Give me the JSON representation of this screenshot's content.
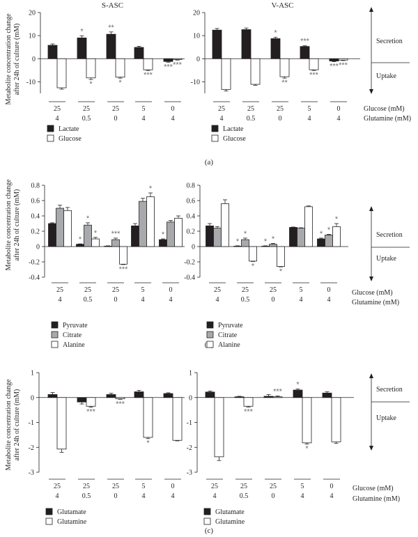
{
  "figure": {
    "y_label": "Metabolite concentration change after 24h of culture (mM)",
    "secretion": "Secretion",
    "uptake": "Uptake",
    "glucose_row": "Glucose (mM)",
    "glutamine_row": "Glutamine (mM)",
    "panel_a": "(a)",
    "panel_b": "(b)",
    "panel_c": "(c)"
  },
  "chart_data": [
    {
      "id": "a-sasc",
      "type": "bar",
      "title": "S-ASC",
      "categories": [
        "25/4",
        "25/0.5",
        "25/0",
        "5/4",
        "0/4"
      ],
      "glucose_levels": [
        "25",
        "25",
        "25",
        "5",
        "0"
      ],
      "glutamine_levels": [
        "4",
        "0.5",
        "0",
        "4",
        "4"
      ],
      "ylim": [
        -15,
        20
      ],
      "yticks": [
        -10,
        0,
        10,
        20
      ],
      "series": [
        {
          "name": "Lactate",
          "color": "#231f20",
          "values": [
            5.8,
            9.0,
            10.6,
            4.9,
            -1.2
          ],
          "errors": [
            0.6,
            0.9,
            1.0,
            0.5,
            0.3
          ],
          "stars": [
            "",
            "*",
            "**",
            "",
            "***"
          ]
        },
        {
          "name": "Glucose",
          "color": "#ffffff",
          "values": [
            -12.6,
            -8.3,
            -8.0,
            -4.8,
            -0.4
          ],
          "errors": [
            0.6,
            0.7,
            0.4,
            0.3,
            0.2
          ],
          "stars": [
            "",
            "*",
            "*",
            "***",
            "***"
          ]
        }
      ]
    },
    {
      "id": "a-vasc",
      "type": "bar",
      "title": "V-ASC",
      "categories": [
        "25/4",
        "25/0.5",
        "25/0",
        "5/4",
        "0/4"
      ],
      "glucose_levels": [
        "25",
        "25",
        "25",
        "5",
        "0"
      ],
      "glutamine_levels": [
        "4",
        "0.5",
        "0",
        "4",
        "4"
      ],
      "ylim": [
        -15,
        20
      ],
      "yticks": [
        -10,
        0,
        10,
        20
      ],
      "series": [
        {
          "name": "Lactate",
          "color": "#231f20",
          "values": [
            12.4,
            12.6,
            8.7,
            5.3,
            -1.0
          ],
          "errors": [
            0.7,
            0.7,
            0.6,
            0.3,
            0.3
          ],
          "stars": [
            "",
            "",
            "*",
            "***",
            "***"
          ]
        },
        {
          "name": "Glucose",
          "color": "#ffffff",
          "values": [
            -13.3,
            -11.1,
            -7.8,
            -4.8,
            -0.6
          ],
          "errors": [
            0.7,
            0.4,
            0.6,
            0.3,
            0.2
          ],
          "stars": [
            "",
            "",
            "**",
            "***",
            "***"
          ]
        }
      ]
    },
    {
      "id": "b-sasc",
      "type": "bar",
      "categories": [
        "25/4",
        "25/0.5",
        "25/0",
        "5/4",
        "0/4"
      ],
      "glucose_levels": [
        "25",
        "25",
        "25",
        "5",
        "0"
      ],
      "glutamine_levels": [
        "4",
        "0.5",
        "0",
        "4",
        "4"
      ],
      "ylim": [
        -0.4,
        0.8
      ],
      "yticks": [
        "-0.4",
        "-0.2",
        "0",
        "0.2",
        "0.4",
        "0.6",
        "0.8"
      ],
      "series": [
        {
          "name": "Pyruvate",
          "color": "#231f20",
          "values": [
            0.3,
            0.03,
            0.005,
            0.27,
            0.09
          ],
          "errors": [
            0.01,
            0.005,
            0.005,
            0.03,
            0.01
          ],
          "stars": [
            "",
            "*",
            "",
            "",
            "*"
          ]
        },
        {
          "name": "Citrate",
          "color": "#a7a9ac",
          "values": [
            0.5,
            0.28,
            0.09,
            0.59,
            0.32
          ],
          "errors": [
            0.04,
            0.03,
            0.02,
            0.04,
            0.02
          ],
          "stars": [
            "",
            "*",
            "***",
            "",
            ""
          ]
        },
        {
          "name": "Alanine",
          "color": "#ffffff",
          "values": [
            0.47,
            0.1,
            -0.23,
            0.65,
            0.37
          ],
          "errors": [
            0.04,
            0.02,
            0.005,
            0.05,
            0.03
          ],
          "stars": [
            "",
            "*",
            "***",
            "*",
            ""
          ]
        }
      ]
    },
    {
      "id": "b-vasc",
      "type": "bar",
      "categories": [
        "25/4",
        "25/0.5",
        "25/0",
        "5/4",
        "0/4"
      ],
      "glucose_levels": [
        "25",
        "25",
        "25",
        "5",
        "0"
      ],
      "glutamine_levels": [
        "4",
        "0.5",
        "0",
        "4",
        "4"
      ],
      "ylim": [
        -0.4,
        0.8
      ],
      "yticks": [
        "-0.4",
        "-0.2",
        "0",
        "0.2",
        "0.4",
        "0.6",
        "0.8"
      ],
      "series": [
        {
          "name": "Pyruvate",
          "color": "#231f20",
          "values": [
            0.27,
            0.005,
            0.005,
            0.25,
            0.1
          ],
          "errors": [
            0.03,
            0.005,
            0.005,
            0.005,
            0.01
          ],
          "stars": [
            "",
            "*",
            "*",
            "",
            "*"
          ]
        },
        {
          "name": "Citrate",
          "color": "#a7a9ac",
          "values": [
            0.24,
            0.09,
            0.03,
            0.24,
            0.15
          ],
          "errors": [
            0.02,
            0.02,
            0.01,
            0.005,
            0.01
          ],
          "stars": [
            "",
            "*",
            "*",
            "",
            "*"
          ]
        },
        {
          "name": "Alanine",
          "color": "#ffffff",
          "values": [
            0.56,
            -0.19,
            -0.26,
            0.52,
            0.26
          ],
          "errors": [
            0.05,
            0.005,
            0.005,
            0.01,
            0.04
          ],
          "stars": [
            "",
            "*",
            "*",
            "",
            "*"
          ]
        }
      ]
    },
    {
      "id": "c-sasc",
      "type": "bar",
      "categories": [
        "25/4",
        "25/0.5",
        "25/0",
        "5/4",
        "0/4"
      ],
      "glucose_levels": [
        "25",
        "25",
        "25",
        "5",
        "0"
      ],
      "glutamine_levels": [
        "4",
        "0.5",
        "0",
        "4",
        "4"
      ],
      "ylim": [
        -3,
        1
      ],
      "yticks": [
        "-3",
        "-2",
        "-1",
        "0",
        "1"
      ],
      "series": [
        {
          "name": "Glutamate",
          "color": "#231f20",
          "values": [
            0.12,
            -0.18,
            0.12,
            0.23,
            0.16
          ],
          "errors": [
            0.08,
            0.08,
            0.05,
            0.06,
            0.03
          ],
          "stars": [
            "",
            "",
            "",
            "",
            ""
          ]
        },
        {
          "name": "Glutamine",
          "color": "#ffffff",
          "values": [
            -2.07,
            -0.35,
            -0.05,
            -1.6,
            -1.72
          ],
          "errors": [
            0.13,
            0.04,
            0.02,
            0.05,
            0.02
          ],
          "stars": [
            "",
            "***",
            "***",
            "*",
            ""
          ]
        }
      ]
    },
    {
      "id": "c-vasc",
      "type": "bar",
      "categories": [
        "25/4",
        "25/0.5",
        "25/0",
        "5/4",
        "0/4"
      ],
      "glucose_levels": [
        "25",
        "25",
        "25",
        "5",
        "0"
      ],
      "glutamine_levels": [
        "4",
        "0.5",
        "0",
        "4",
        "4"
      ],
      "ylim": [
        -3,
        1
      ],
      "yticks": [
        "-3",
        "-2",
        "-1",
        "0",
        "1"
      ],
      "series": [
        {
          "name": "Glutamate",
          "color": "#231f20",
          "values": [
            0.22,
            0.03,
            0.05,
            0.3,
            0.18
          ],
          "errors": [
            0.04,
            0.02,
            0.07,
            0.04,
            0.05
          ],
          "stars": [
            "",
            "",
            "",
            "*",
            ""
          ]
        },
        {
          "name": "Glutamine",
          "color": "#ffffff",
          "values": [
            -2.38,
            -0.35,
            0.03,
            -1.82,
            -1.78
          ],
          "errors": [
            0.15,
            0.03,
            0.03,
            0.05,
            0.06
          ],
          "stars": [
            "",
            "***",
            "***",
            "*",
            ""
          ]
        }
      ]
    }
  ]
}
